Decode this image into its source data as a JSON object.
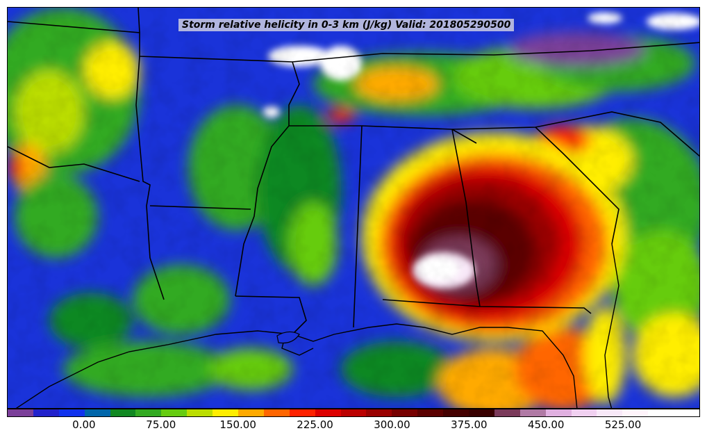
{
  "title": "Storm relative helicity in 0-3 km (J/kg) Valid: 201805290500",
  "colorbar": {
    "min": -75,
    "max": 600,
    "step": 25,
    "colors": [
      "#7b3f99",
      "#2222cc",
      "#1133ee",
      "#0066aa",
      "#118822",
      "#33aa22",
      "#66cc11",
      "#bbdd00",
      "#ffee00",
      "#ffaa00",
      "#ff6600",
      "#ff2200",
      "#dd0000",
      "#bb0000",
      "#990000",
      "#770000",
      "#5a0000",
      "#440000",
      "#380000",
      "#7a3a5a",
      "#b07aa5",
      "#e0b0e0",
      "#f0d0f0",
      "#f8e8f8",
      "#fff4fb",
      "#ffffff",
      "#ffffff"
    ],
    "tick_labels": [
      "0.00",
      "75.00",
      "150.00",
      "225.00",
      "300.00",
      "375.00",
      "450.00",
      "525.00"
    ],
    "tick_values": [
      0,
      75,
      150,
      225,
      300,
      375,
      450,
      525
    ]
  }
}
